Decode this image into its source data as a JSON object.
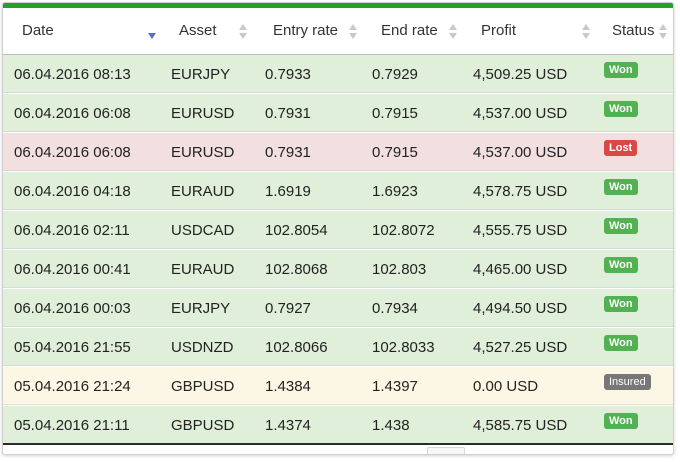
{
  "columns": [
    {
      "label": "Date"
    },
    {
      "label": "Asset"
    },
    {
      "label": "Entry rate"
    },
    {
      "label": "End rate"
    },
    {
      "label": "Profit"
    },
    {
      "label": "Status"
    }
  ],
  "rows": [
    {
      "date": "06.04.2016 08:13",
      "asset": "EURJPY",
      "entry": "0.7933",
      "end": "0.7929",
      "profit": "4,509.25 USD",
      "status": "Won"
    },
    {
      "date": "06.04.2016 06:08",
      "asset": "EURUSD",
      "entry": "0.7931",
      "end": "0.7915",
      "profit": "4,537.00 USD",
      "status": "Won"
    },
    {
      "date": "06.04.2016 06:08",
      "asset": "EURUSD",
      "entry": "0.7931",
      "end": "0.7915",
      "profit": "4,537.00 USD",
      "status": "Lost"
    },
    {
      "date": "06.04.2016 04:18",
      "asset": "EURAUD",
      "entry": "1.6919",
      "end": "1.6923",
      "profit": "4,578.75 USD",
      "status": "Won"
    },
    {
      "date": "06.04.2016 02:11",
      "asset": "USDCAD",
      "entry": "102.8054",
      "end": "102.8072",
      "profit": "4,555.75 USD",
      "status": "Won"
    },
    {
      "date": "06.04.2016 00:41",
      "asset": "EURAUD",
      "entry": "102.8068",
      "end": "102.803",
      "profit": "4,465.00 USD",
      "status": "Won"
    },
    {
      "date": "06.04.2016 00:03",
      "asset": "EURJPY",
      "entry": "0.7927",
      "end": "0.7934",
      "profit": "4,494.50 USD",
      "status": "Won"
    },
    {
      "date": "05.04.2016 21:55",
      "asset": "USDNZD",
      "entry": "102.8066",
      "end": "102.8033",
      "profit": "4,527.25 USD",
      "status": "Won"
    },
    {
      "date": "05.04.2016 21:24",
      "asset": "GBPUSD",
      "entry": "1.4384",
      "end": "1.4397",
      "profit": "0.00 USD",
      "status": "Insured"
    },
    {
      "date": "05.04.2016 21:11",
      "asset": "GBPUSD",
      "entry": "1.4374",
      "end": "1.438",
      "profit": "4,585.75 USD",
      "status": "Won"
    }
  ],
  "colors": {
    "accent": "#22a222",
    "won_row": "#e0efd9",
    "lost_row": "#f2dfdf",
    "insured_row": "#fbf7e4",
    "won_badge": "#52b152",
    "lost_badge": "#d94747",
    "insured_badge": "#777777",
    "sort_active": "#5b6cc4"
  },
  "icons": {
    "sort_active": "sort-desc-icon",
    "sort_inactive": "sort-both-icon"
  }
}
